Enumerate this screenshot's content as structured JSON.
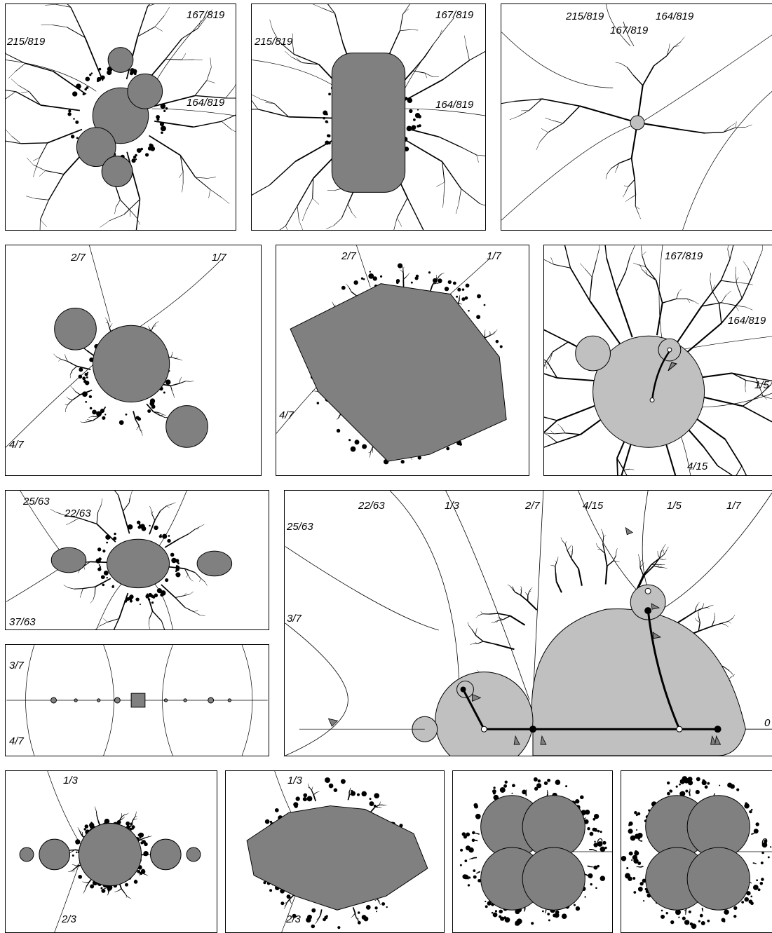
{
  "colors": {
    "ink": "#000000",
    "gray": "#808080",
    "light": "#c0c0c0",
    "paper": "#ffffff"
  },
  "panels": [
    {
      "id": "p1",
      "labels": [
        "167/819",
        "215/819",
        "164/819"
      ]
    },
    {
      "id": "p2",
      "labels": [
        "167/819",
        "215/819",
        "164/819"
      ]
    },
    {
      "id": "p3",
      "labels": [
        "215/819",
        "164/819",
        "167/819"
      ]
    },
    {
      "id": "p4",
      "labels": [
        "2/7",
        "1/7",
        "4/7"
      ]
    },
    {
      "id": "p5",
      "labels": [
        "2/7",
        "1/7",
        "4/7"
      ]
    },
    {
      "id": "p6",
      "labels": [
        "167/819",
        "164/819",
        "1/5",
        "4/15"
      ]
    },
    {
      "id": "p7",
      "labels": [
        "25/63",
        "22/63",
        "37/63"
      ]
    },
    {
      "id": "p8",
      "labels": [
        "3/7",
        "4/7"
      ]
    },
    {
      "id": "p9",
      "labels": [
        "22/63",
        "1/3",
        "2/7",
        "4/15",
        "1/5",
        "1/7",
        "25/63",
        "3/7",
        "0"
      ]
    },
    {
      "id": "p10",
      "labels": [
        "1/3",
        "2/3"
      ]
    },
    {
      "id": "p11",
      "labels": [
        "1/3",
        "2/3"
      ]
    },
    {
      "id": "p12",
      "labels": [
        "0"
      ]
    },
    {
      "id": "p13",
      "labels": [
        "0"
      ]
    }
  ]
}
